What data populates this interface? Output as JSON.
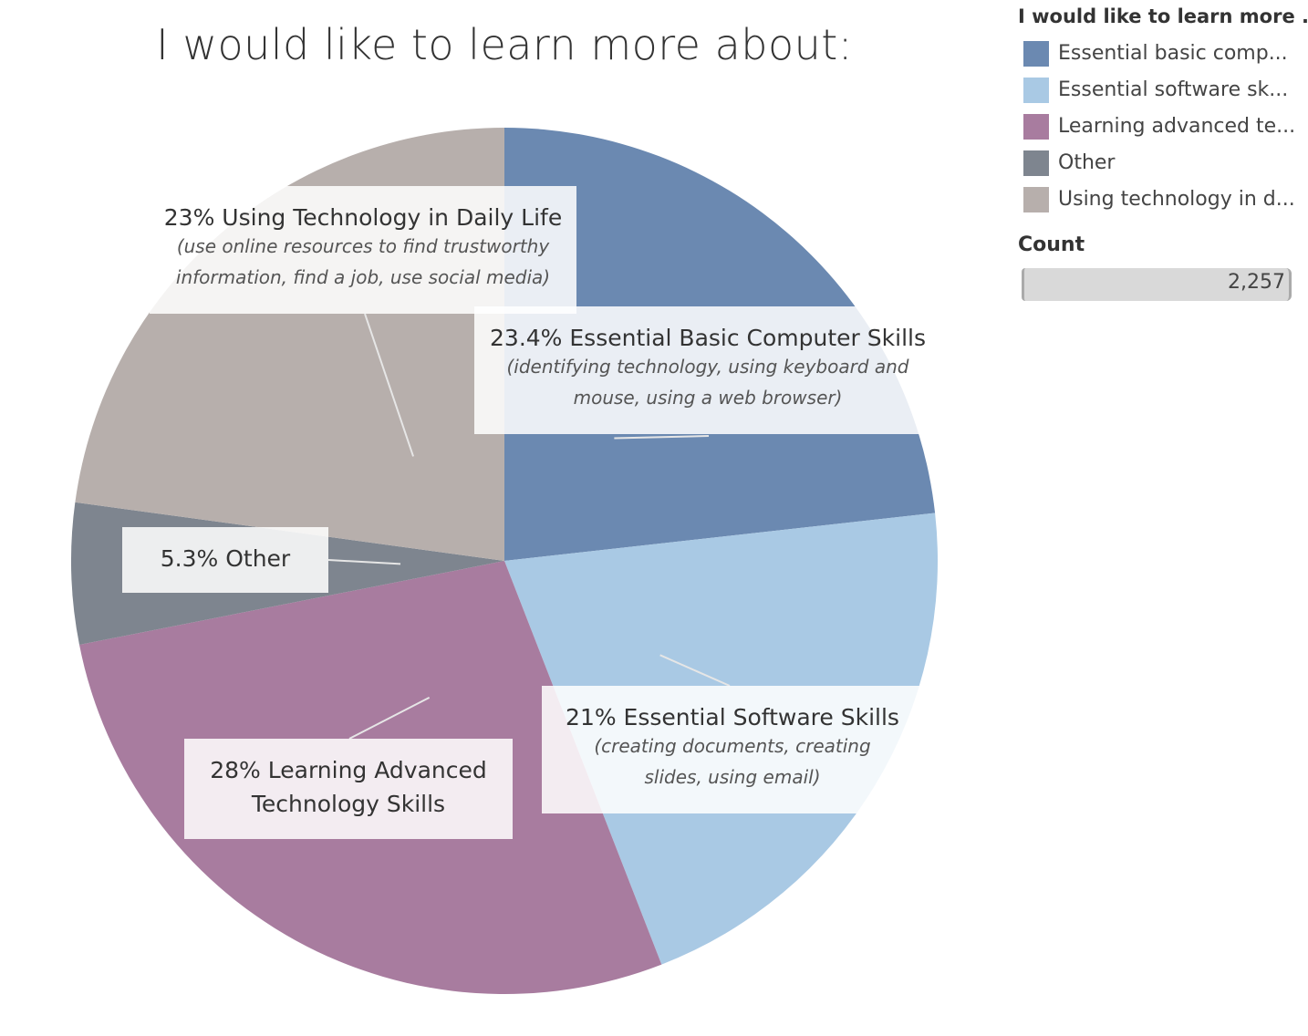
{
  "chart_data": {
    "type": "pie",
    "title": "I would like to learn more about:",
    "slices": [
      {
        "key": "basic",
        "legend": "Essential basic comp...",
        "percent": 23.4,
        "color": "#6b89b1",
        "label": "23.4%  Essential Basic Computer Skills",
        "sublabel": [
          "(identifying technology, using keyboard and",
          "mouse, using a web browser)"
        ]
      },
      {
        "key": "software",
        "legend": "Essential software sk...",
        "percent": 21,
        "color": "#a9c9e4",
        "label": "21% Essential Software Skills",
        "sublabel": [
          "(creating documents, creating",
          "slides, using email)"
        ]
      },
      {
        "key": "advanced",
        "legend": "Learning advanced te...",
        "percent": 28,
        "color": "#a87c9f",
        "label": [
          "28% Learning Advanced",
          "Technology Skills"
        ],
        "sublabel": []
      },
      {
        "key": "other",
        "legend": "Other",
        "percent": 5.3,
        "color": "#7e858f",
        "label": "5.3% Other",
        "sublabel": []
      },
      {
        "key": "daily",
        "legend": "Using technology in d...",
        "percent": 23,
        "color": "#b7afac",
        "label": "23% Using Technology in Daily Life",
        "sublabel": [
          "(use online resources to find trustworthy",
          "information, find a job, use social media)"
        ]
      }
    ],
    "legend": {
      "title": "I would like to learn more ...",
      "placement": "right"
    }
  },
  "count_legend": {
    "title": "Count",
    "value": "2,257"
  }
}
